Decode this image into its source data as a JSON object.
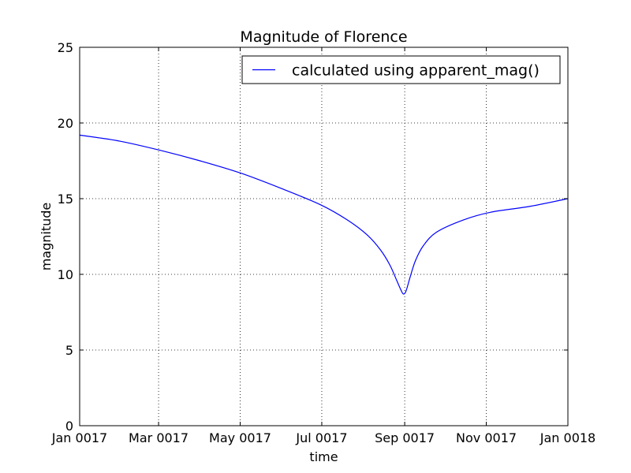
{
  "chart_data": {
    "type": "line",
    "title": "Magnitude of Florence",
    "xlabel": "time",
    "ylabel": "magnitude",
    "xlim": [
      "0017-01-01",
      "0018-01-01"
    ],
    "ylim": [
      0,
      25
    ],
    "grid": true,
    "legend_position": "top-right",
    "x_ticks": [
      {
        "date": "0017-01-01",
        "label": "Jan 0017"
      },
      {
        "date": "0017-03-01",
        "label": "Mar 0017"
      },
      {
        "date": "0017-05-01",
        "label": "May 0017"
      },
      {
        "date": "0017-07-01",
        "label": "Jul 0017"
      },
      {
        "date": "0017-09-01",
        "label": "Sep 0017"
      },
      {
        "date": "0017-11-01",
        "label": "Nov 0017"
      },
      {
        "date": "0018-01-01",
        "label": "Jan 0018"
      }
    ],
    "y_ticks": [
      0,
      5,
      10,
      15,
      20,
      25
    ],
    "series": [
      {
        "name": "calculated using apparent_mag()",
        "color": "#0000ff",
        "x": [
          "0017-01-01",
          "0017-01-31",
          "0017-03-02",
          "0017-04-01",
          "0017-05-01",
          "0017-05-31",
          "0017-06-30",
          "0017-07-20",
          "0017-08-04",
          "0017-08-14",
          "0017-08-21",
          "0017-08-26",
          "0017-08-29",
          "0017-08-31",
          "0017-09-02",
          "0017-09-05",
          "0017-09-09",
          "0017-09-15",
          "0017-09-25",
          "0017-10-15",
          "0017-11-04",
          "0017-12-04",
          "0018-01-01"
        ],
        "y": [
          19.2,
          18.8,
          18.2,
          17.5,
          16.7,
          15.7,
          14.6,
          13.6,
          12.6,
          11.6,
          10.6,
          9.6,
          9.0,
          8.7,
          8.9,
          9.8,
          10.9,
          11.9,
          12.8,
          13.6,
          14.1,
          14.5,
          15.0
        ]
      }
    ]
  }
}
